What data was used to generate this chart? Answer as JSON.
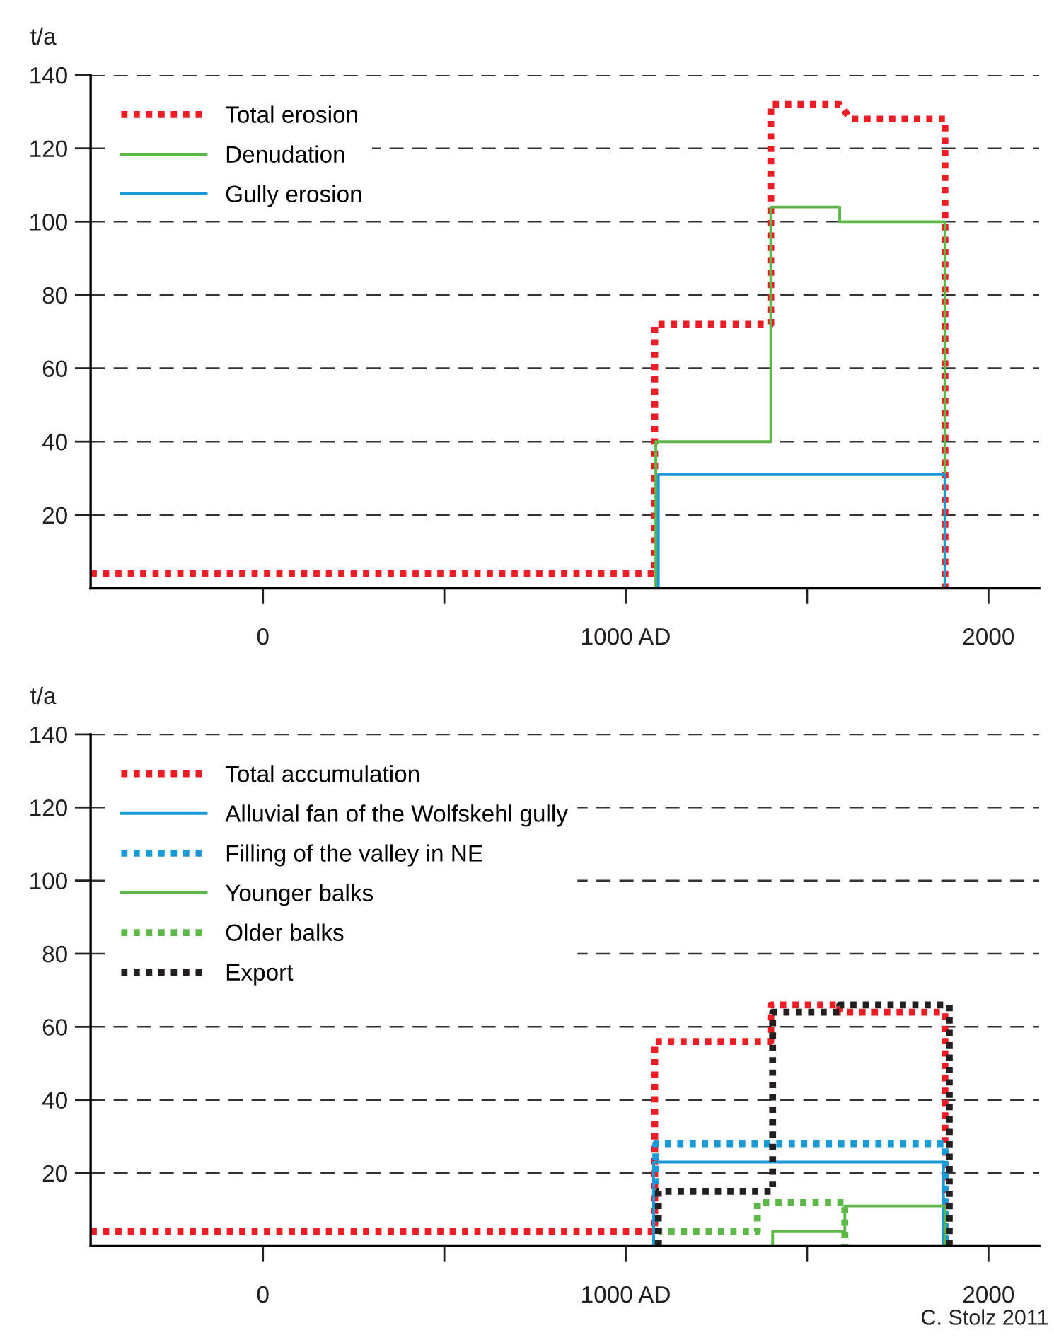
{
  "chart_data": [
    {
      "type": "line",
      "ylabel": "t/a",
      "xlim": [
        -475,
        2140
      ],
      "ylim": [
        0,
        140
      ],
      "xticks": [
        0,
        {
          "value": 500,
          "label": null
        },
        {
          "value": 1000,
          "label": "1000 AD"
        },
        {
          "value": 1500,
          "label": null
        },
        2000
      ],
      "yticks": [
        20,
        40,
        60,
        80,
        100,
        120,
        140
      ],
      "grid": "y",
      "legend": "top left",
      "series": [
        {
          "name": "Total erosion",
          "color": "#ee1c25",
          "line_style": "dotted",
          "x": [
            -475,
            1080,
            1080,
            1400,
            1400,
            1590,
            1620,
            1880,
            1880
          ],
          "values": [
            4,
            4,
            72,
            72,
            132,
            132,
            128,
            128,
            0
          ]
        },
        {
          "name": "Denudation",
          "color": "#5db947",
          "line_style": "solid",
          "x": [
            1083,
            1083,
            1400,
            1400,
            1590,
            1590,
            1880,
            1880
          ],
          "values": [
            0,
            40,
            40,
            104,
            104,
            100,
            100,
            0
          ]
        },
        {
          "name": "Gully erosion",
          "color": "#1a9ad6",
          "line_style": "solid",
          "x": [
            1090,
            1090,
            1880,
            1880
          ],
          "values": [
            0,
            31,
            31,
            0
          ]
        }
      ]
    },
    {
      "type": "line",
      "ylabel": "t/a",
      "xlim": [
        -475,
        2140
      ],
      "ylim": [
        0,
        140
      ],
      "xticks": [
        0,
        {
          "value": 500,
          "label": null
        },
        {
          "value": 1000,
          "label": "1000 AD"
        },
        {
          "value": 1500,
          "label": null
        },
        2000
      ],
      "yticks": [
        20,
        40,
        60,
        80,
        100,
        120,
        140
      ],
      "grid": "y",
      "legend": "top left",
      "annotations": [
        "C. Stolz 2011"
      ],
      "series": [
        {
          "name": "Total accumulation",
          "color": "#ee1c25",
          "line_style": "dotted",
          "x": [
            -475,
            1080,
            1080,
            1400,
            1400,
            1590,
            1590,
            1880,
            1880
          ],
          "values": [
            4,
            4,
            56,
            56,
            66,
            66,
            64,
            64,
            0
          ]
        },
        {
          "name": "Alluvial fan of the Wolfskehl gully",
          "color": "#1a9ad6",
          "line_style": "solid",
          "x": [
            1077,
            1077,
            1876,
            1876
          ],
          "values": [
            0,
            23,
            23,
            0
          ]
        },
        {
          "name": "Filling of the valley in NE",
          "color": "#1a9ad6",
          "line_style": "dotted",
          "x": [
            1083,
            1083,
            1880,
            1880
          ],
          "values": [
            0,
            28,
            28,
            0
          ]
        },
        {
          "name": "Younger balks",
          "color": "#5db947",
          "line_style": "solid",
          "x": [
            1405,
            1405,
            1604,
            1604,
            1880,
            1880
          ],
          "values": [
            0,
            4,
            4,
            11,
            11,
            0
          ]
        },
        {
          "name": "Older balks",
          "color": "#5db947",
          "line_style": "dotted",
          "x": [
            1090,
            1090,
            1363,
            1363,
            1604,
            1604
          ],
          "values": [
            0,
            4,
            4,
            12,
            12,
            0
          ]
        },
        {
          "name": "Export",
          "color": "#231f20",
          "line_style": "dotted",
          "x": [
            1090,
            1090,
            1405,
            1405,
            1590,
            1590,
            1892,
            1892
          ],
          "values": [
            0,
            15,
            15,
            64,
            64,
            66,
            66,
            0
          ]
        }
      ]
    }
  ]
}
